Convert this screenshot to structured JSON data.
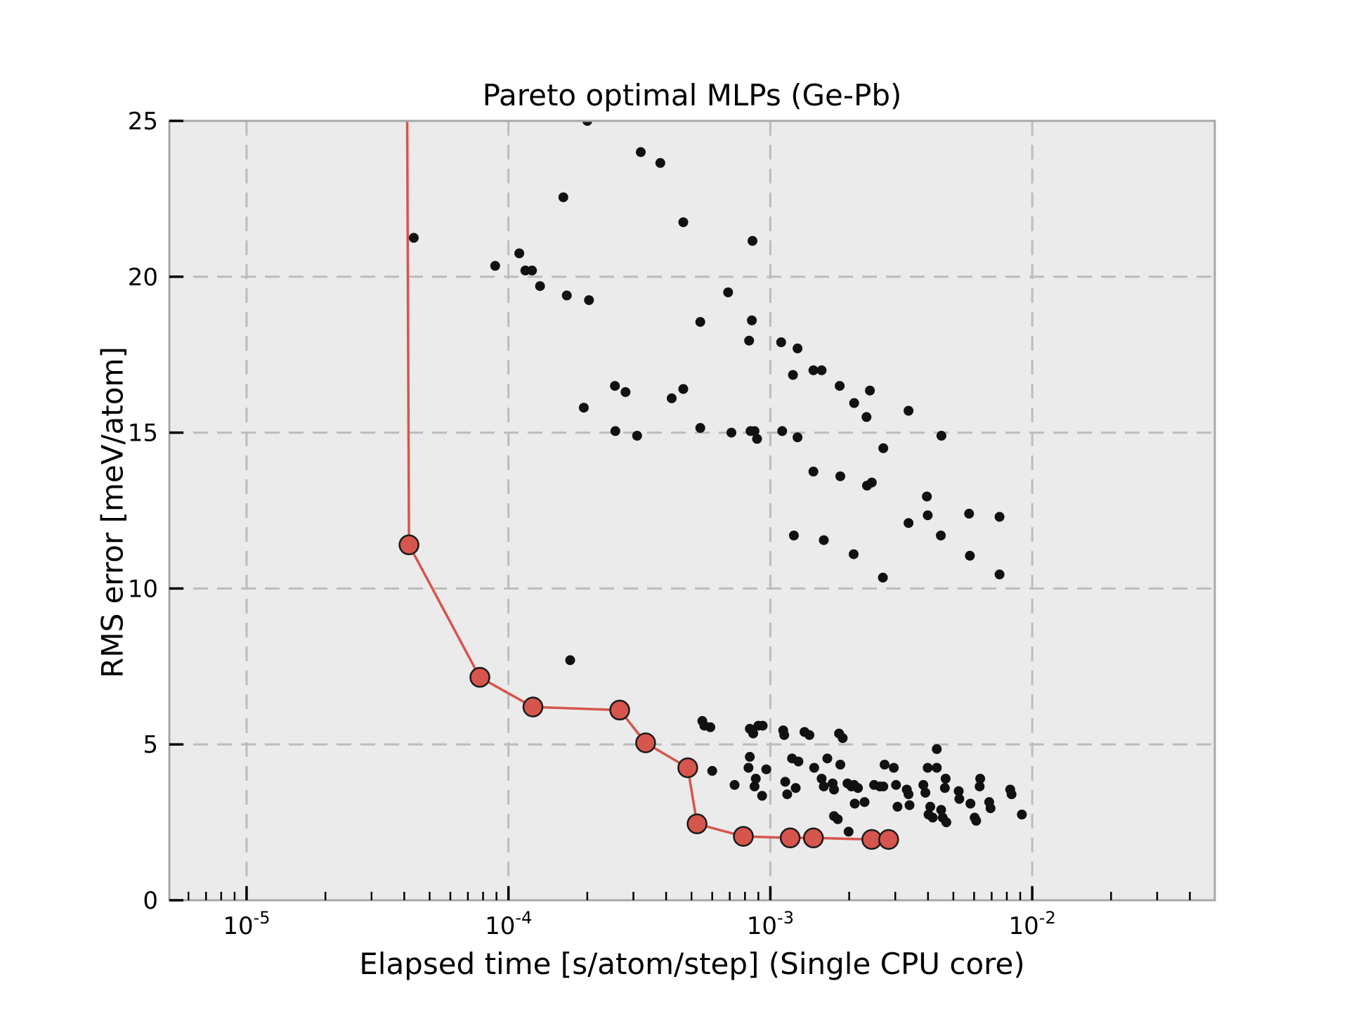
{
  "chart_data": {
    "type": "scatter",
    "title": "Pareto optimal MLPs (Ge-Pb)",
    "xlabel": "Elapsed time [s/atom/step] (Single CPU core)",
    "ylabel": "RMS error [meV/atom]",
    "x_scale": "log",
    "y_scale": "linear",
    "xlim": [
      5.07e-06,
      0.0498
    ],
    "ylim": [
      0,
      25
    ],
    "x_major_tick_exponents": [
      -5,
      -4,
      -3,
      -2
    ],
    "x_tick_label_base": "10",
    "y_ticks": [
      0,
      5,
      10,
      15,
      20,
      25
    ],
    "grid": true,
    "grid_style": "dashed",
    "legend_position": "none",
    "series": [
      {
        "name": "MLP models",
        "type": "scatter",
        "color": "#111111",
        "marker": "circle",
        "marker_size": 7,
        "points": [
          [
            0.0002,
            25.0
          ],
          [
            0.00032,
            24.0
          ],
          [
            0.00038,
            23.65
          ],
          [
            0.000162,
            22.55
          ],
          [
            0.000465,
            21.75
          ],
          [
            4.35e-05,
            21.25
          ],
          [
            0.000855,
            21.15
          ],
          [
            0.00011,
            20.75
          ],
          [
            8.9e-05,
            20.35
          ],
          [
            0.000116,
            20.2
          ],
          [
            0.000123,
            20.2
          ],
          [
            0.000132,
            19.7
          ],
          [
            0.000167,
            19.4
          ],
          [
            0.000203,
            19.25
          ],
          [
            0.00069,
            19.5
          ],
          [
            0.00085,
            18.6
          ],
          [
            0.00054,
            18.55
          ],
          [
            0.00083,
            17.95
          ],
          [
            0.0011,
            17.9
          ],
          [
            0.00127,
            17.7
          ],
          [
            0.00122,
            16.85
          ],
          [
            0.00146,
            17.0
          ],
          [
            0.00157,
            17.0
          ],
          [
            0.000255,
            16.5
          ],
          [
            0.00028,
            16.3
          ],
          [
            0.000465,
            16.4
          ],
          [
            0.00042,
            16.1
          ],
          [
            0.000194,
            15.8
          ],
          [
            0.00184,
            16.5
          ],
          [
            0.0024,
            16.35
          ],
          [
            0.00209,
            15.95
          ],
          [
            0.00233,
            15.5
          ],
          [
            0.00337,
            15.7
          ],
          [
            0.00054,
            15.15
          ],
          [
            0.000256,
            15.05
          ],
          [
            0.00031,
            14.9
          ],
          [
            0.00071,
            15.0
          ],
          [
            0.00084,
            15.05
          ],
          [
            0.00087,
            15.05
          ],
          [
            0.00089,
            14.8
          ],
          [
            0.00111,
            15.05
          ],
          [
            0.00127,
            14.85
          ],
          [
            0.0045,
            14.9
          ],
          [
            0.0027,
            14.5
          ],
          [
            0.00146,
            13.75
          ],
          [
            0.00185,
            13.6
          ],
          [
            0.00234,
            13.3
          ],
          [
            0.00244,
            13.4
          ],
          [
            0.00396,
            12.95
          ],
          [
            0.00399,
            12.35
          ],
          [
            0.00337,
            12.1
          ],
          [
            0.00574,
            12.4
          ],
          [
            0.0075,
            12.3
          ],
          [
            0.00448,
            11.7
          ],
          [
            0.00123,
            11.7
          ],
          [
            0.0016,
            11.55
          ],
          [
            0.00208,
            11.1
          ],
          [
            0.00578,
            11.05
          ],
          [
            0.00269,
            10.35
          ],
          [
            0.0075,
            10.45
          ],
          [
            0.000172,
            7.7
          ],
          [
            0.00055,
            5.75
          ],
          [
            0.00056,
            5.6
          ],
          [
            0.00059,
            5.55
          ],
          [
            0.000835,
            5.5
          ],
          [
            0.00086,
            5.35
          ],
          [
            0.0009,
            5.6
          ],
          [
            0.000935,
            5.6
          ],
          [
            0.00112,
            5.45
          ],
          [
            0.00113,
            5.3
          ],
          [
            0.00135,
            5.4
          ],
          [
            0.00141,
            5.3
          ],
          [
            0.00183,
            5.35
          ],
          [
            0.00189,
            5.2
          ],
          [
            0.00432,
            4.85
          ],
          [
            0.0006,
            4.15
          ],
          [
            0.00073,
            3.7
          ],
          [
            0.000835,
            4.6
          ],
          [
            0.000825,
            4.25
          ],
          [
            0.000965,
            4.2
          ],
          [
            0.00088,
            3.9
          ],
          [
            0.00087,
            3.65
          ],
          [
            0.00093,
            3.35
          ],
          [
            0.00121,
            4.55
          ],
          [
            0.00128,
            4.45
          ],
          [
            0.00147,
            4.25
          ],
          [
            0.00165,
            4.55
          ],
          [
            0.00185,
            4.35
          ],
          [
            0.00114,
            3.8
          ],
          [
            0.00116,
            3.4
          ],
          [
            0.00125,
            3.6
          ],
          [
            0.00157,
            3.9
          ],
          [
            0.0016,
            3.65
          ],
          [
            0.00173,
            3.75
          ],
          [
            0.00175,
            3.55
          ],
          [
            0.00197,
            3.75
          ],
          [
            0.00204,
            3.65
          ],
          [
            0.00209,
            3.7
          ],
          [
            0.00216,
            3.6
          ],
          [
            0.00249,
            3.7
          ],
          [
            0.00262,
            3.65
          ],
          [
            0.0027,
            3.65
          ],
          [
            0.0021,
            3.1
          ],
          [
            0.00229,
            3.15
          ],
          [
            0.00175,
            2.7
          ],
          [
            0.00181,
            2.6
          ],
          [
            0.00199,
            2.2
          ],
          [
            0.00296,
            4.25
          ],
          [
            0.00273,
            4.35
          ],
          [
            0.00302,
            3.7
          ],
          [
            0.00306,
            3.0
          ],
          [
            0.0034,
            3.05
          ],
          [
            0.00384,
            3.7
          ],
          [
            0.00391,
            3.45
          ],
          [
            0.00399,
            4.25
          ],
          [
            0.00432,
            4.25
          ],
          [
            0.00467,
            3.9
          ],
          [
            0.00464,
            3.6
          ],
          [
            0.00332,
            3.55
          ],
          [
            0.00337,
            3.4
          ],
          [
            0.00408,
            3.0
          ],
          [
            0.00402,
            2.75
          ],
          [
            0.00417,
            2.65
          ],
          [
            0.00449,
            2.9
          ],
          [
            0.00455,
            2.65
          ],
          [
            0.0047,
            2.5
          ],
          [
            0.00524,
            3.5
          ],
          [
            0.00527,
            3.25
          ],
          [
            0.00581,
            3.1
          ],
          [
            0.00603,
            2.65
          ],
          [
            0.00611,
            2.55
          ],
          [
            0.00633,
            3.9
          ],
          [
            0.0063,
            3.65
          ],
          [
            0.00685,
            3.15
          ],
          [
            0.00693,
            2.95
          ],
          [
            0.00824,
            3.55
          ],
          [
            0.00834,
            3.4
          ],
          [
            0.00913,
            2.75
          ]
        ]
      },
      {
        "name": "Pareto optimal front",
        "type": "line+scatter",
        "color": "#d6554c",
        "marker": "circle",
        "marker_size": 13.5,
        "marker_edge_color": "#1a1a1a",
        "marker_edge_width": 2.5,
        "line_width": 3.5,
        "line_clip_start": [
          4.1e-05,
          25.8
        ],
        "points": [
          [
            4.17e-05,
            11.4
          ],
          [
            7.78e-05,
            7.15
          ],
          [
            0.000124,
            6.2
          ],
          [
            0.000266,
            6.1
          ],
          [
            0.000334,
            5.05
          ],
          [
            0.000484,
            4.25
          ],
          [
            0.000525,
            2.45
          ],
          [
            0.000789,
            2.05
          ],
          [
            0.00119,
            2.0
          ],
          [
            0.00146,
            2.0
          ],
          [
            0.00244,
            1.95
          ],
          [
            0.00283,
            1.95
          ]
        ]
      }
    ]
  },
  "colors": {
    "figure_background": "#ffffff",
    "axes_background": "#ebebeb",
    "grid": "#bcbcbc",
    "spine": "#a8a8a8",
    "tick": "#000000",
    "text": "#000000",
    "scatter": "#111111",
    "pareto": "#d6554c"
  }
}
